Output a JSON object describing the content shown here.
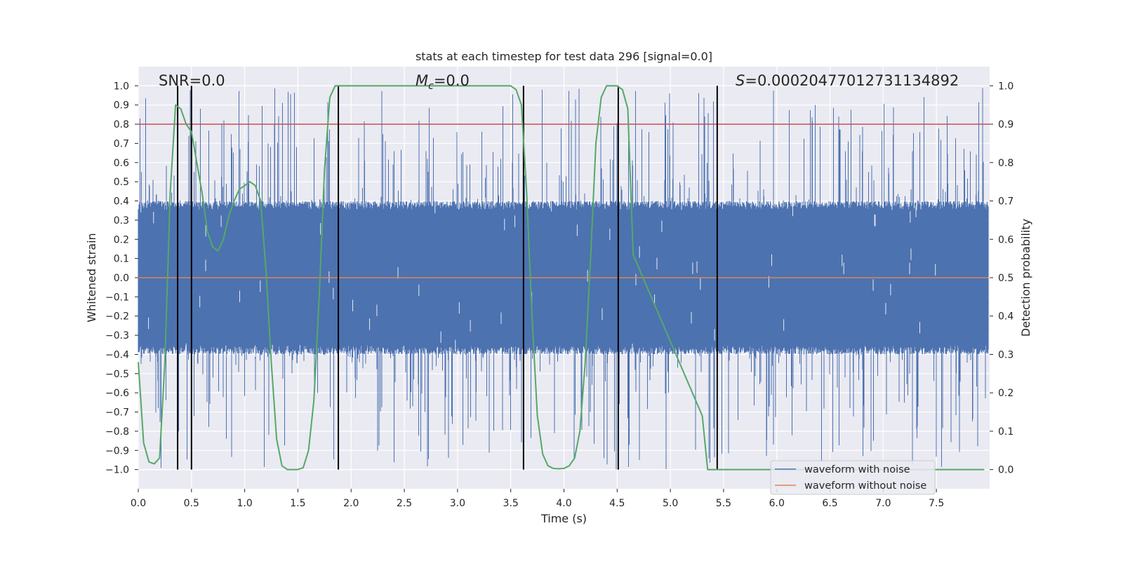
{
  "chart_data": {
    "type": "line",
    "title": "stats at each timestep for test data 296 [signal=0.0]",
    "xlabel": "Time (s)",
    "ylabel_left": "Whitened strain",
    "ylabel_right": "Detection probability",
    "xlim": [
      0.0,
      8.0
    ],
    "ylim_left": [
      -1.1,
      1.1
    ],
    "ylim_right": [
      -0.05,
      1.05
    ],
    "x_ticks": [
      "0.0",
      "0.5",
      "1.0",
      "1.5",
      "2.0",
      "2.5",
      "3.0",
      "3.5",
      "4.0",
      "4.5",
      "5.0",
      "5.5",
      "6.0",
      "6.5",
      "7.0",
      "7.5"
    ],
    "x_tick_values": [
      0.0,
      0.5,
      1.0,
      1.5,
      2.0,
      2.5,
      3.0,
      3.5,
      4.0,
      4.5,
      5.0,
      5.5,
      6.0,
      6.5,
      7.0,
      7.5
    ],
    "y_left_ticks": [
      "1.0",
      "0.9",
      "0.8",
      "0.7",
      "0.6",
      "0.5",
      "0.4",
      "0.3",
      "0.2",
      "0.1",
      "0.0",
      "−0.1",
      "−0.2",
      "−0.3",
      "−0.4",
      "−0.5",
      "−0.6",
      "−0.7",
      "−0.8",
      "−0.9",
      "−1.0"
    ],
    "y_left_tick_values": [
      1.0,
      0.9,
      0.8,
      0.7,
      0.6,
      0.5,
      0.4,
      0.3,
      0.2,
      0.1,
      0.0,
      -0.1,
      -0.2,
      -0.3,
      -0.4,
      -0.5,
      -0.6,
      -0.7,
      -0.8,
      -0.9,
      -1.0
    ],
    "y_right_ticks": [
      "1.0",
      "0.9",
      "0.8",
      "0.7",
      "0.6",
      "0.5",
      "0.4",
      "0.3",
      "0.2",
      "0.1",
      "0.0"
    ],
    "y_right_tick_values": [
      1.0,
      0.9,
      0.8,
      0.7,
      0.6,
      0.5,
      0.4,
      0.3,
      0.2,
      0.1,
      0.0
    ],
    "annotations": {
      "snr": "SNR=0.0",
      "mc_symbol": "M",
      "mc_subscript": "c",
      "mc_value": "=0.0",
      "s_symbol": "S",
      "s_value": "=0.00020477012731134892"
    },
    "threshold_right": 0.9,
    "vlines_x": [
      0.37,
      0.5,
      1.88,
      3.62,
      4.51,
      5.44
    ],
    "noise": {
      "amplitude_bulk": 0.4,
      "amplitude_peak": 1.0,
      "t_start": 0.0,
      "t_end": 7.99
    },
    "series": [
      {
        "name": "waveform with noise",
        "color": "#4c72b0",
        "axis": "left"
      },
      {
        "name": "waveform without noise",
        "color": "#dd8452",
        "axis": "left",
        "x": [
          0.0,
          7.99
        ],
        "y": [
          0.0,
          0.0
        ]
      },
      {
        "name": "detection probability",
        "color": "#55a868",
        "axis": "right",
        "x": [
          0.0,
          0.05,
          0.1,
          0.15,
          0.2,
          0.25,
          0.3,
          0.35,
          0.4,
          0.45,
          0.5,
          0.55,
          0.6,
          0.65,
          0.7,
          0.75,
          0.8,
          0.85,
          0.9,
          0.95,
          1.0,
          1.05,
          1.1,
          1.15,
          1.2,
          1.25,
          1.3,
          1.35,
          1.4,
          1.45,
          1.5,
          1.55,
          1.6,
          1.65,
          1.7,
          1.75,
          1.8,
          1.85,
          1.9,
          1.95,
          2.0,
          2.05,
          2.1,
          3.5,
          3.55,
          3.6,
          3.65,
          3.7,
          3.75,
          3.8,
          3.85,
          3.9,
          3.95,
          4.0,
          4.05,
          4.1,
          4.15,
          4.2,
          4.25,
          4.3,
          4.35,
          4.4,
          4.45,
          4.5,
          4.55,
          4.6,
          4.65,
          5.3,
          5.35,
          5.4,
          5.45,
          5.5,
          5.55,
          5.6,
          5.65,
          7.95
        ],
        "y": [
          0.28,
          0.07,
          0.02,
          0.015,
          0.03,
          0.28,
          0.72,
          0.95,
          0.94,
          0.9,
          0.88,
          0.8,
          0.72,
          0.62,
          0.58,
          0.57,
          0.6,
          0.66,
          0.7,
          0.73,
          0.74,
          0.75,
          0.74,
          0.7,
          0.52,
          0.28,
          0.08,
          0.01,
          0.0,
          0.0,
          0.0,
          0.005,
          0.05,
          0.18,
          0.45,
          0.78,
          0.97,
          1.0,
          1.0,
          1.0,
          1.0,
          1.0,
          1.0,
          1.0,
          0.99,
          0.95,
          0.72,
          0.4,
          0.14,
          0.04,
          0.01,
          0.003,
          0.002,
          0.003,
          0.01,
          0.03,
          0.1,
          0.28,
          0.55,
          0.85,
          0.97,
          1.0,
          1.0,
          1.0,
          0.99,
          0.94,
          0.56,
          0.14,
          0.0,
          0.0,
          0.0,
          0.0,
          0.0,
          0.0,
          0.0,
          0.0
        ]
      }
    ],
    "legend": {
      "position": "bottom-right",
      "entries": [
        "waveform with noise",
        "waveform without noise"
      ]
    },
    "colors": {
      "plot_bg": "#eaeaf2",
      "grid": "#ffffff",
      "threshold": "#c44e52",
      "vline": "#000000",
      "text": "#262626"
    },
    "grid": true
  }
}
